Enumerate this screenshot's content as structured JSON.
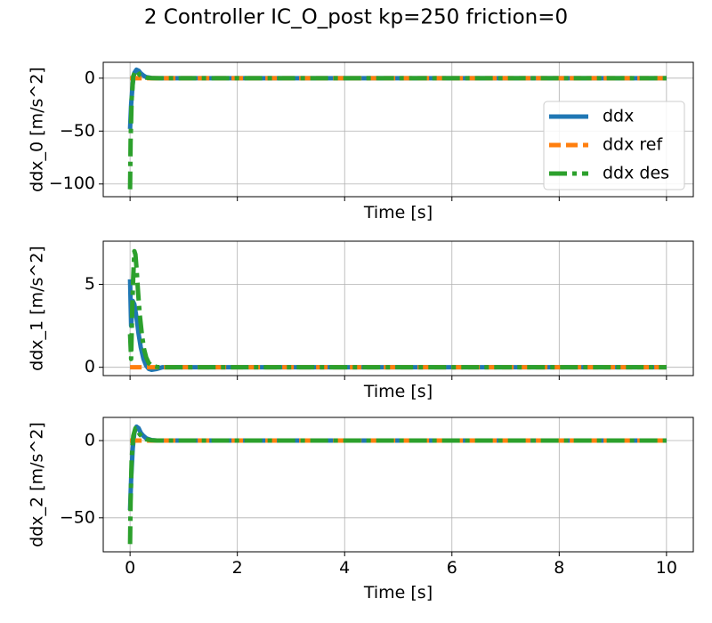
{
  "figure_title": "2 Controller IC_O_post kp=250 friction=0",
  "colors": {
    "ddx": "#1f77b4",
    "ddx_ref": "#ff7f0e",
    "ddx_des": "#2ca02c",
    "grid": "#b0b0b0"
  },
  "chart_data": [
    {
      "type": "line",
      "ylabel": "ddx_0 [m/s^2]",
      "xlabel": "Time [s]",
      "xlim": [
        -0.5,
        10.5
      ],
      "ylim": [
        -112,
        15
      ],
      "xticks": [
        0,
        2,
        4,
        6,
        8,
        10
      ],
      "xtick_labels_visible": false,
      "yticks": [
        -100,
        -50,
        0
      ],
      "ytick_labels": [
        "−100",
        "−50",
        "0"
      ],
      "grid": true,
      "legend": "right",
      "series": [
        {
          "name": "ddx",
          "style": "solid",
          "x": [
            0,
            0.02,
            0.05,
            0.08,
            0.12,
            0.16,
            0.2,
            0.25,
            0.3,
            0.4,
            0.5,
            0.7,
            1,
            10
          ],
          "y": [
            -48,
            -25,
            -5,
            5,
            8,
            7,
            4.5,
            2.5,
            1,
            0.2,
            0,
            0,
            0,
            0
          ]
        },
        {
          "name": "ddx ref",
          "style": "dashed",
          "x": [
            0,
            10
          ],
          "y": [
            0,
            0
          ]
        },
        {
          "name": "ddx des",
          "style": "dashdot",
          "x": [
            0,
            0.01,
            0.03,
            0.06,
            0.1,
            0.14,
            0.18,
            0.24,
            0.3,
            0.4,
            0.5,
            0.7,
            1,
            10
          ],
          "y": [
            -105,
            -60,
            -20,
            2,
            7,
            6,
            3,
            1.5,
            0.5,
            0.1,
            0,
            0,
            0,
            0
          ]
        }
      ]
    },
    {
      "type": "line",
      "ylabel": "ddx_1 [m/s^2]",
      "xlabel": "Time [s]",
      "xlim": [
        -0.5,
        10.5
      ],
      "ylim": [
        -0.5,
        7.6
      ],
      "xticks": [
        0,
        2,
        4,
        6,
        8,
        10
      ],
      "xtick_labels_visible": false,
      "yticks": [
        0,
        5
      ],
      "ytick_labels": [
        "0",
        "5"
      ],
      "grid": true,
      "series": [
        {
          "name": "ddx",
          "style": "solid",
          "x": [
            0,
            0.02,
            0.05,
            0.08,
            0.12,
            0.16,
            0.2,
            0.25,
            0.3,
            0.35,
            0.4,
            0.5,
            0.6,
            0.8,
            10
          ],
          "y": [
            5.3,
            2.5,
            4.0,
            3.8,
            3.0,
            2.0,
            1.2,
            0.5,
            0.1,
            -0.1,
            -0.15,
            -0.1,
            0,
            0,
            0
          ]
        },
        {
          "name": "ddx ref",
          "style": "dashed",
          "x": [
            0,
            10
          ],
          "y": [
            0,
            0
          ]
        },
        {
          "name": "ddx des",
          "style": "dashdot",
          "x": [
            0,
            0.02,
            0.04,
            0.06,
            0.08,
            0.1,
            0.12,
            0.15,
            0.18,
            0.22,
            0.26,
            0.3,
            0.35,
            0.4,
            0.5,
            0.6,
            10
          ],
          "y": [
            2.0,
            0.5,
            3.5,
            5.5,
            7.0,
            6.8,
            6.0,
            4.5,
            3.2,
            2.0,
            1.1,
            0.6,
            0.25,
            0.1,
            0.02,
            0,
            0
          ]
        }
      ]
    },
    {
      "type": "line",
      "ylabel": "ddx_2 [m/s^2]",
      "xlabel": "Time [s]",
      "xlim": [
        -0.5,
        10.5
      ],
      "ylim": [
        -72,
        15
      ],
      "xticks": [
        0,
        2,
        4,
        6,
        8,
        10
      ],
      "xtick_labels_visible": true,
      "xtick_labels": [
        "0",
        "2",
        "4",
        "6",
        "8",
        "10"
      ],
      "yticks": [
        -50,
        0
      ],
      "ytick_labels": [
        "−50",
        "0"
      ],
      "grid": true,
      "series": [
        {
          "name": "ddx",
          "style": "solid",
          "x": [
            0,
            0.02,
            0.05,
            0.08,
            0.12,
            0.16,
            0.2,
            0.25,
            0.3,
            0.4,
            0.5,
            0.7,
            1,
            10
          ],
          "y": [
            -45,
            -25,
            -5,
            5,
            9,
            8,
            5,
            3,
            1.5,
            0.3,
            0,
            0,
            0,
            0
          ]
        },
        {
          "name": "ddx ref",
          "style": "dashed",
          "x": [
            0,
            10
          ],
          "y": [
            0,
            0
          ]
        },
        {
          "name": "ddx des",
          "style": "dashdot",
          "x": [
            0,
            0.01,
            0.03,
            0.06,
            0.1,
            0.14,
            0.18,
            0.24,
            0.3,
            0.4,
            0.5,
            0.7,
            1,
            10
          ],
          "y": [
            -67,
            -40,
            -12,
            3,
            8,
            7,
            4,
            2,
            0.8,
            0.2,
            0,
            0,
            0,
            0
          ]
        }
      ]
    }
  ]
}
